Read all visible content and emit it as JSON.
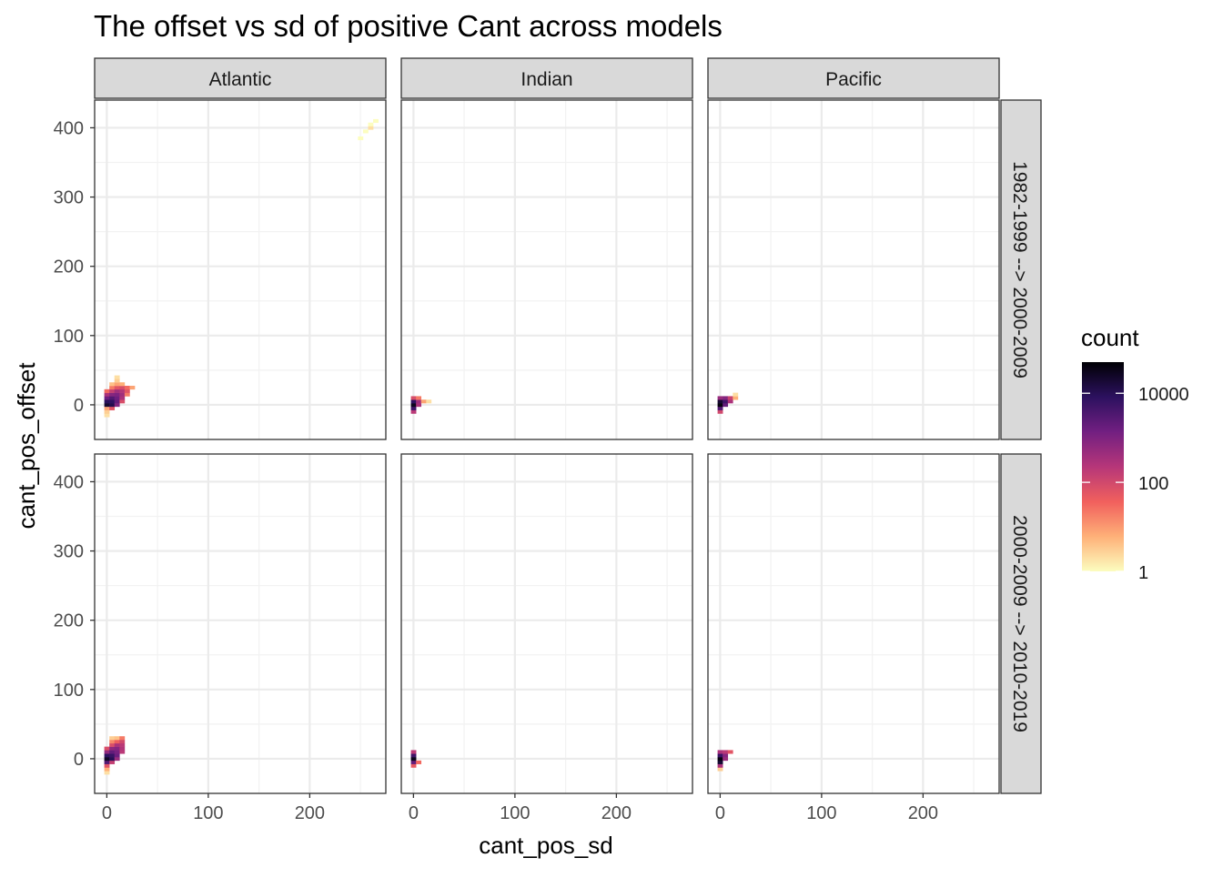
{
  "chart_data": {
    "type": "heatmap",
    "title": "The offset vs sd of positive Cant across models",
    "xlabel": "cant_pos_sd",
    "ylabel": "cant_pos_offset",
    "xlim": [
      -12,
      275
    ],
    "ylim": [
      -50,
      440
    ],
    "x_ticks": [
      0,
      100,
      200
    ],
    "y_ticks": [
      0,
      100,
      200,
      300,
      400
    ],
    "grid": true,
    "columns": [
      "Atlantic",
      "Indian",
      "Pacific"
    ],
    "rows": [
      "1982-1999 --> 2000-2009",
      "2000-2009 --> 2010-2019"
    ],
    "bin_width": 5,
    "bin_height": 5,
    "legend": {
      "title": "count",
      "scale": "log10",
      "ticks": [
        1,
        100,
        10000
      ],
      "tick_labels": [
        "1",
        "100",
        "10000"
      ],
      "range": [
        1,
        50000
      ],
      "colors": [
        "#fcfdbf",
        "#feb078",
        "#f1605d",
        "#b63679",
        "#721f81",
        "#2c115f",
        "#000004"
      ]
    },
    "panels": [
      {
        "column": "Atlantic",
        "row": "1982-1999 --> 2000-2009",
        "cells": [
          [
            0,
            -15,
            2
          ],
          [
            0,
            -10,
            3
          ],
          [
            0,
            -5,
            8
          ],
          [
            0,
            0,
            20000
          ],
          [
            0,
            5,
            9000
          ],
          [
            0,
            10,
            1500
          ],
          [
            0,
            15,
            300
          ],
          [
            0,
            20,
            30
          ],
          [
            5,
            -5,
            60
          ],
          [
            5,
            0,
            12000
          ],
          [
            5,
            5,
            8000
          ],
          [
            5,
            10,
            3000
          ],
          [
            5,
            15,
            800
          ],
          [
            5,
            20,
            150
          ],
          [
            5,
            25,
            20
          ],
          [
            5,
            30,
            4
          ],
          [
            10,
            0,
            900
          ],
          [
            10,
            5,
            2000
          ],
          [
            10,
            10,
            1500
          ],
          [
            10,
            15,
            1000
          ],
          [
            10,
            20,
            400
          ],
          [
            10,
            25,
            60
          ],
          [
            10,
            30,
            8
          ],
          [
            10,
            35,
            3
          ],
          [
            10,
            40,
            2
          ],
          [
            15,
            5,
            80
          ],
          [
            15,
            10,
            300
          ],
          [
            15,
            15,
            400
          ],
          [
            15,
            20,
            250
          ],
          [
            15,
            25,
            80
          ],
          [
            15,
            30,
            6
          ],
          [
            20,
            15,
            20
          ],
          [
            20,
            20,
            60
          ],
          [
            20,
            25,
            30
          ],
          [
            25,
            25,
            8
          ],
          [
            250,
            385,
            1
          ],
          [
            255,
            395,
            1
          ],
          [
            260,
            400,
            2
          ],
          [
            260,
            405,
            1
          ],
          [
            265,
            410,
            1
          ]
        ]
      },
      {
        "column": "Indian",
        "row": "1982-1999 --> 2000-2009",
        "cells": [
          [
            0,
            -10,
            200
          ],
          [
            0,
            -5,
            5000
          ],
          [
            0,
            0,
            30000
          ],
          [
            0,
            5,
            8000
          ],
          [
            0,
            10,
            80
          ],
          [
            5,
            0,
            300
          ],
          [
            5,
            5,
            400
          ],
          [
            5,
            10,
            20
          ],
          [
            10,
            5,
            8
          ],
          [
            15,
            5,
            2
          ]
        ]
      },
      {
        "column": "Pacific",
        "row": "1982-1999 --> 2000-2009",
        "cells": [
          [
            0,
            -10,
            100
          ],
          [
            0,
            -5,
            3000
          ],
          [
            0,
            0,
            40000
          ],
          [
            0,
            5,
            20000
          ],
          [
            0,
            10,
            500
          ],
          [
            5,
            0,
            2000
          ],
          [
            5,
            5,
            5000
          ],
          [
            5,
            10,
            800
          ],
          [
            10,
            5,
            300
          ],
          [
            10,
            10,
            120
          ],
          [
            15,
            10,
            6
          ],
          [
            15,
            15,
            2
          ]
        ]
      },
      {
        "column": "Atlantic",
        "row": "2000-2009 --> 2010-2019",
        "cells": [
          [
            0,
            -20,
            2
          ],
          [
            0,
            -15,
            6
          ],
          [
            0,
            -10,
            60
          ],
          [
            0,
            -5,
            3000
          ],
          [
            0,
            0,
            25000
          ],
          [
            0,
            5,
            8000
          ],
          [
            0,
            10,
            600
          ],
          [
            0,
            15,
            80
          ],
          [
            5,
            -5,
            150
          ],
          [
            5,
            0,
            10000
          ],
          [
            5,
            5,
            6000
          ],
          [
            5,
            10,
            2000
          ],
          [
            5,
            15,
            600
          ],
          [
            5,
            20,
            80
          ],
          [
            5,
            25,
            15
          ],
          [
            5,
            30,
            3
          ],
          [
            10,
            0,
            500
          ],
          [
            10,
            5,
            1500
          ],
          [
            10,
            10,
            1200
          ],
          [
            10,
            15,
            800
          ],
          [
            10,
            20,
            300
          ],
          [
            10,
            25,
            40
          ],
          [
            10,
            30,
            4
          ],
          [
            15,
            10,
            200
          ],
          [
            15,
            15,
            250
          ],
          [
            15,
            20,
            200
          ],
          [
            15,
            25,
            100
          ],
          [
            15,
            30,
            20
          ]
        ]
      },
      {
        "column": "Indian",
        "row": "2000-2009 --> 2010-2019",
        "cells": [
          [
            0,
            -10,
            50
          ],
          [
            0,
            -5,
            2000
          ],
          [
            0,
            0,
            30000
          ],
          [
            0,
            5,
            5000
          ],
          [
            0,
            10,
            200
          ],
          [
            5,
            -5,
            30
          ]
        ]
      },
      {
        "column": "Pacific",
        "row": "2000-2009 --> 2010-2019",
        "cells": [
          [
            0,
            -15,
            3
          ],
          [
            0,
            -10,
            300
          ],
          [
            0,
            -5,
            20000
          ],
          [
            0,
            0,
            40000
          ],
          [
            0,
            5,
            6000
          ],
          [
            0,
            10,
            300
          ],
          [
            5,
            0,
            500
          ],
          [
            5,
            5,
            800
          ],
          [
            5,
            10,
            200
          ],
          [
            10,
            10,
            60
          ]
        ]
      }
    ]
  }
}
